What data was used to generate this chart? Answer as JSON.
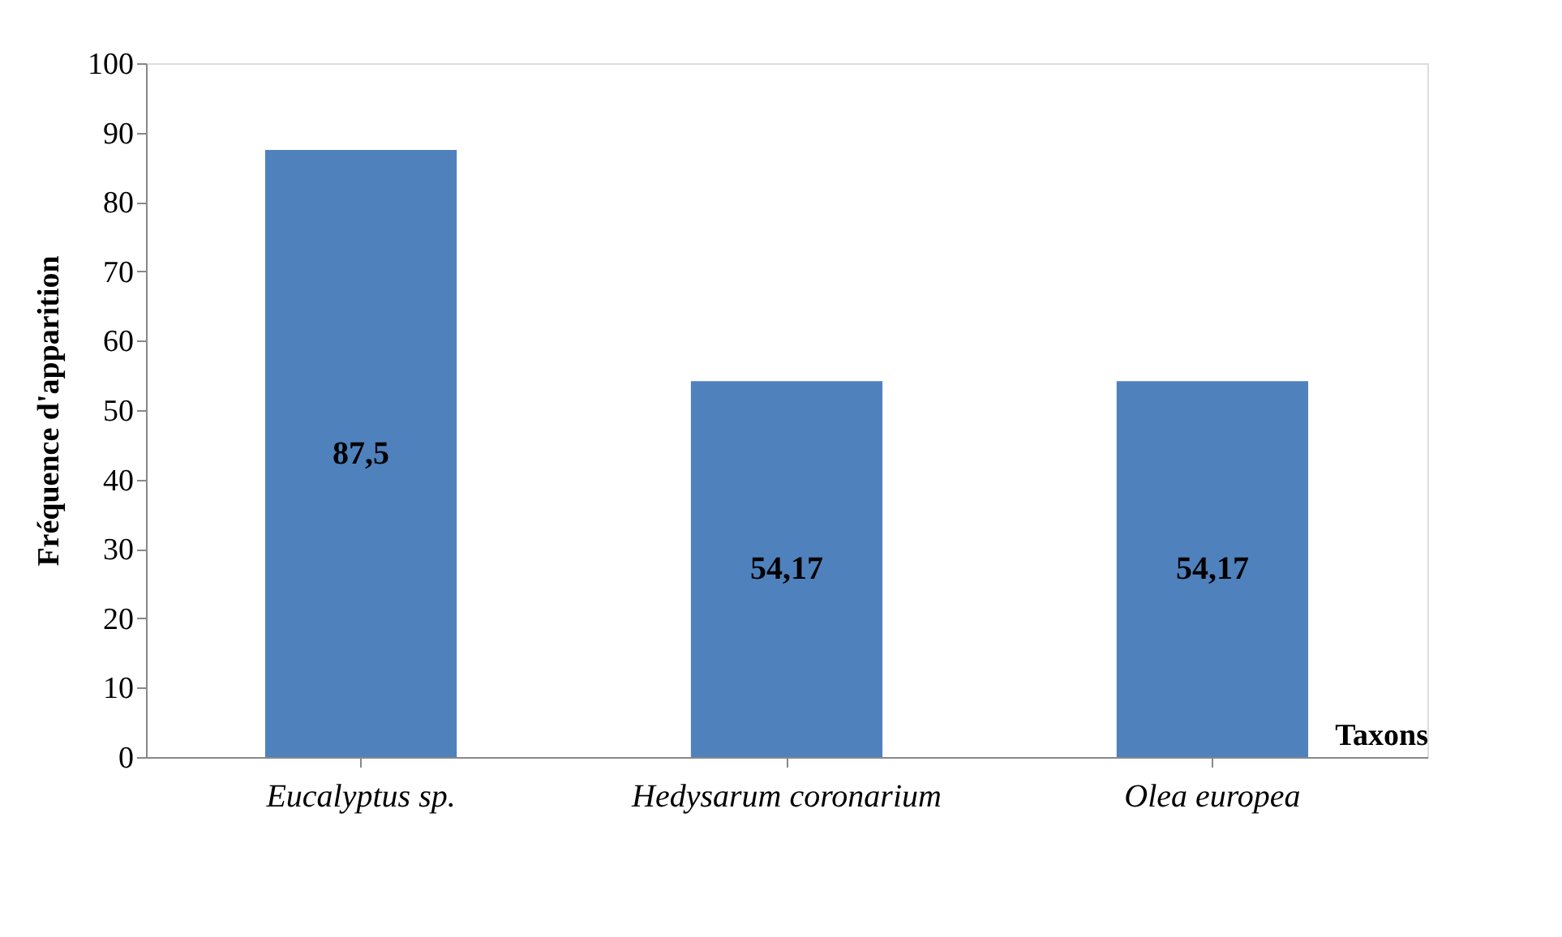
{
  "chart_data": {
    "type": "bar",
    "ylabel": "Fréquence d'apparition",
    "xlabel": "Taxons",
    "categories": [
      "Eucalyptus sp.",
      "Hedysarum coronarium",
      "Olea europea"
    ],
    "values": [
      87.5,
      54.17,
      54.17
    ],
    "value_labels": [
      "87,5",
      "54,17",
      "54,17"
    ],
    "color": "#4f81bd",
    "ylim": [
      0,
      100
    ],
    "yticks": [
      0,
      10,
      20,
      30,
      40,
      50,
      60,
      70,
      80,
      90,
      100
    ],
    "grid": false
  }
}
